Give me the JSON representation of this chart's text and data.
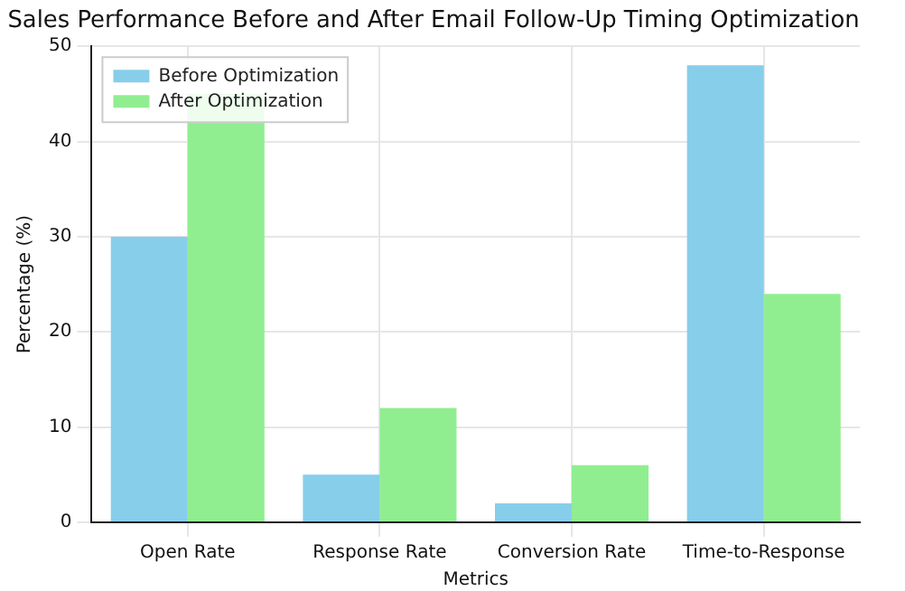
{
  "chart_data": {
    "type": "bar",
    "title": "Sales Performance Before and After Email Follow-Up Timing Optimization",
    "xlabel": "Metrics",
    "ylabel": "Percentage (%)",
    "categories": [
      "Open Rate",
      "Response Rate",
      "Conversion Rate",
      "Time-to-Response"
    ],
    "series": [
      {
        "name": "Before Optimization",
        "color": "#87ceeb",
        "values": [
          30,
          5,
          2,
          48
        ]
      },
      {
        "name": "After Optimization",
        "color": "#90ee90",
        "values": [
          45,
          12,
          6,
          24
        ]
      }
    ],
    "ylim": [
      0,
      50
    ],
    "yticks": [
      0,
      10,
      20,
      30,
      40,
      50
    ],
    "grid": true,
    "legend": "top left"
  }
}
